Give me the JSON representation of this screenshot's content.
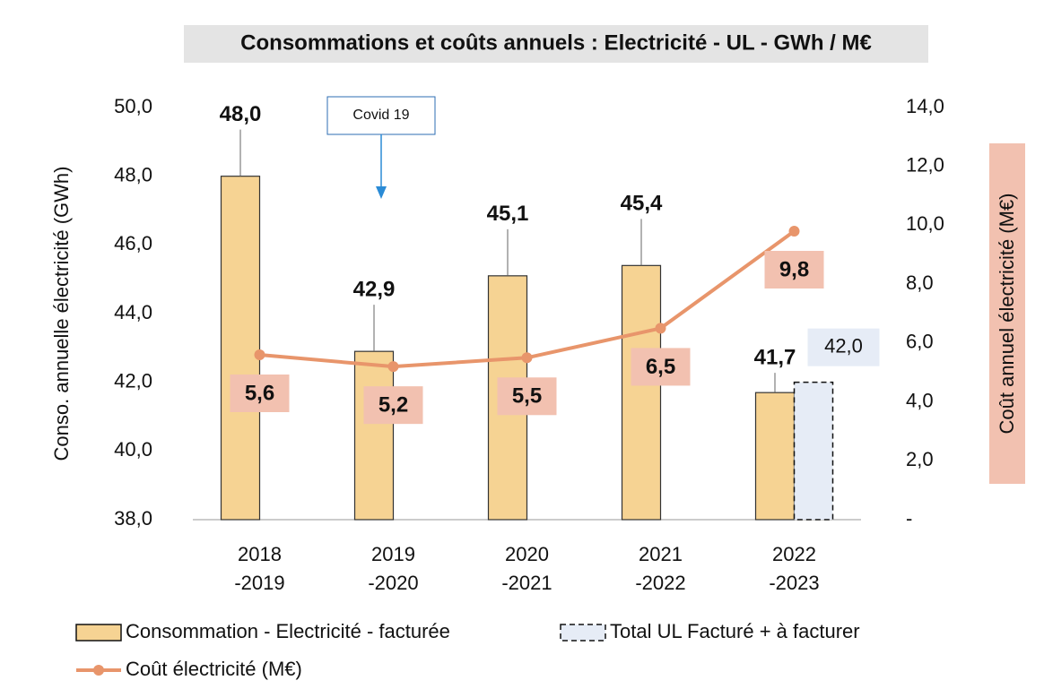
{
  "chart_data": {
    "type": "bar",
    "title": "Consommations et coûts annuels : Electricité - UL - GWh / M€",
    "annotation": "Covid 19",
    "ylabel": "Conso.  annuelle électricité (GWh)",
    "y2label": "Coût annuel électricité (M€)",
    "categories": [
      [
        "2018",
        "-2019"
      ],
      [
        "2019",
        "-2020"
      ],
      [
        "2020",
        "-2021"
      ],
      [
        "2021",
        "-2022"
      ],
      [
        "2022",
        "-2023"
      ]
    ],
    "ylim": [
      38,
      50
    ],
    "yticks": [
      {
        "value": 38,
        "label": "38,0"
      },
      {
        "value": 40,
        "label": "40,0"
      },
      {
        "value": 42,
        "label": "42,0"
      },
      {
        "value": 44,
        "label": "44,0"
      },
      {
        "value": 46,
        "label": "46,0"
      },
      {
        "value": 48,
        "label": "48,0"
      },
      {
        "value": 50,
        "label": "50,0"
      }
    ],
    "y2lim": [
      0,
      14
    ],
    "y2ticks": [
      {
        "value": 0,
        "label": "-"
      },
      {
        "value": 2,
        "label": "2,0"
      },
      {
        "value": 4,
        "label": "4,0"
      },
      {
        "value": 6,
        "label": "6,0"
      },
      {
        "value": 8,
        "label": "8,0"
      },
      {
        "value": 10,
        "label": "10,0"
      },
      {
        "value": 12,
        "label": "12,0"
      },
      {
        "value": 14,
        "label": "14,0"
      }
    ],
    "series": [
      {
        "name": "Consommation - Electricité - facturée",
        "type": "bar",
        "color": "#f6d393",
        "values": [
          48.0,
          42.9,
          45.1,
          45.4,
          41.7
        ],
        "value_labels": [
          "48,0",
          "42,9",
          "45,1",
          "45,4",
          "41,7"
        ]
      },
      {
        "name": "Total UL Facturé + à facturer",
        "type": "dashed-bar",
        "color": "#e6ecf6",
        "values": [
          null,
          null,
          null,
          null,
          42.0
        ],
        "value_labels": [
          null,
          null,
          null,
          null,
          "42,0"
        ]
      },
      {
        "name": "Coût électricité (M€)",
        "type": "line",
        "axis": "y2",
        "color": "#e8956b",
        "values": [
          5.6,
          5.2,
          5.5,
          6.5,
          9.8
        ],
        "value_labels": [
          "5,6",
          "5,2",
          "5,5",
          "6,5",
          "9,8"
        ]
      }
    ]
  }
}
